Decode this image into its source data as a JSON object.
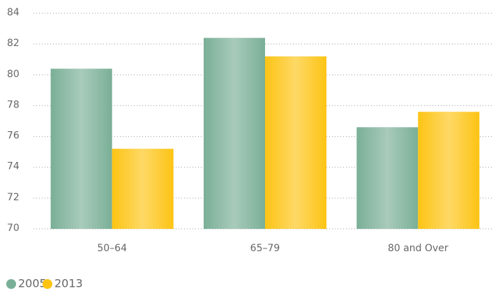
{
  "chart_data": {
    "type": "bar",
    "categories": [
      "50–64",
      "65–79",
      "80 and Over"
    ],
    "series": [
      {
        "name": "2005",
        "color": "#7aaf97",
        "values": [
          80.4,
          82.4,
          76.6
        ]
      },
      {
        "name": "2013",
        "color": "#fdc414",
        "values": [
          75.2,
          81.2,
          77.6
        ]
      }
    ],
    "ylim": [
      70,
      84
    ],
    "yticks": [
      70,
      72,
      74,
      76,
      78,
      80,
      82,
      84
    ],
    "grid": true,
    "legend": "bottom-left"
  }
}
